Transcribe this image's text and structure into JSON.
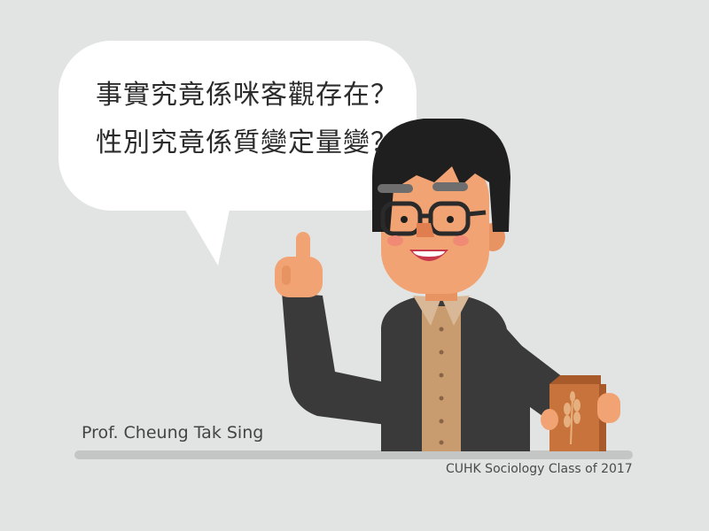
{
  "speech_bubble": {
    "line1": "事實究竟係咪客觀存在？",
    "line2": "性別究竟係質變定量變？"
  },
  "captions": {
    "name": "Prof. Cheung Tak Sing",
    "class": "CUHK Sociology Class of 2017"
  },
  "colors": {
    "background": "#e2e4e3",
    "bubble": "#ffffff",
    "skin": "#f2a374",
    "jacket": "#3a3a3a",
    "shirt": "#c99c6f",
    "hair": "#1f1f1f",
    "box": "#c9733c",
    "ground": "#c4c6c5"
  }
}
